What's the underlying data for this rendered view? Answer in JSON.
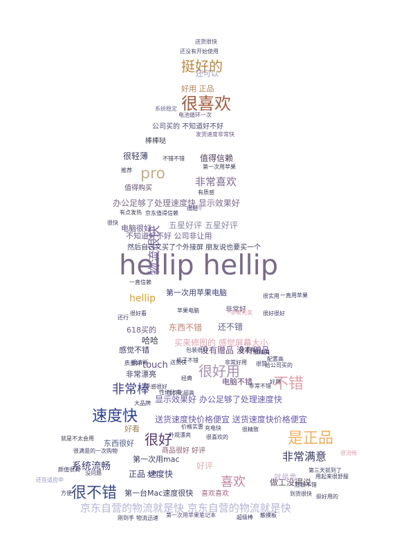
{
  "word_cloud": {
    "words": [
      {
        "text": "hellip hellip",
        "color": "#7a6a88"
      },
      {
        "text": "京东自营的物流就是快 京东自营的物流就是快",
        "color": "#b3b3d6"
      },
      {
        "text": "很喜欢",
        "color": "#a05a3c"
      },
      {
        "text": "挺好的",
        "color": "#b8863e"
      },
      {
        "text": "pro",
        "color": "#c4b08a"
      },
      {
        "text": "非常喜欢",
        "color": "#7a6890"
      },
      {
        "text": "速度快",
        "color": "#2d3d8a"
      },
      {
        "text": "很好用",
        "color": "#a58fb0"
      },
      {
        "text": "不错",
        "color": "#e0a0a8"
      },
      {
        "text": "非常棒",
        "color": "#3a3a80"
      },
      {
        "text": "很好",
        "color": "#5a3a70"
      },
      {
        "text": "是正品",
        "color": "#f0b060"
      },
      {
        "text": "很不错",
        "color": "#3a4a8a"
      },
      {
        "text": "非常满意",
        "color": "#3a3a60"
      },
      {
        "text": "喜欢",
        "color": "#c080a0"
      },
      {
        "text": "系统流畅",
        "color": "#3a3a70"
      },
      {
        "text": "hellip",
        "color": "#e0a020"
      },
      {
        "text": "物流很快",
        "color": "#7a68a0"
      },
      {
        "text": "送货速度快价格便宜 送货速度快价格便宜",
        "color": "#6a5aa8"
      },
      {
        "text": "显示效果好 办公足够了处理速度快",
        "color": "#6a5aa8"
      },
      {
        "text": "办公足够了处理速度快 显示效果好",
        "color": "#7a6a88"
      },
      {
        "text": "然后自己又买了个外接屏 朋友说也要买一个",
        "color": "#3a3a60"
      },
      {
        "text": "买来修图的 感觉屏幕大小",
        "color": "#e0a0b0"
      },
      {
        "text": "五星好评 五星好评",
        "color": "#8a8aa8"
      },
      {
        "text": "第一次用苹果电脑",
        "color": "#3a3a70"
      },
      {
        "text": "东西不错",
        "color": "#c08070"
      },
      {
        "text": "还不错",
        "color": "#5a5a80"
      },
      {
        "text": "值得信赖",
        "color": "#4a3a5a"
      },
      {
        "text": "很轻薄",
        "color": "#3a3a60"
      },
      {
        "text": "值得购买",
        "color": "#5a4a70"
      },
      {
        "text": "电脑很好",
        "color": "#5a4a80"
      },
      {
        "text": "不知道好不好 公司非让用",
        "color": "#6a5a88"
      },
      {
        "text": "公司买的 不知道好不好",
        "color": "#4a4a70"
      },
      {
        "text": "棒棒哒",
        "color": "#3a3a50"
      },
      {
        "text": "好用 正品",
        "color": "#b08050"
      },
      {
        "text": "还可以",
        "color": "#9a9ab8"
      },
      {
        "text": "正品 速度快",
        "color": "#3a3a70"
      },
      {
        "text": "东西很好",
        "color": "#4a5a88"
      },
      {
        "text": "第一次用mac",
        "color": "#3a3a60"
      },
      {
        "text": "第一台Mac速度很快",
        "color": "#3a3a60"
      },
      {
        "text": "商品很好 好评",
        "color": "#8a5a70"
      },
      {
        "text": "做工没得说",
        "color": "#5a4a60"
      },
      {
        "text": "好评",
        "color": "#e0b0b0"
      },
      {
        "text": "哈哈",
        "color": "#3a3a50"
      },
      {
        "text": "618买的",
        "color": "#6a5a80"
      },
      {
        "text": "感觉不错",
        "color": "#3a3a60"
      },
      {
        "text": "touch",
        "color": "#5a4a80"
      },
      {
        "text": "非常漂亮",
        "color": "#3a3a60"
      },
      {
        "text": "没有赠品 没有赠品",
        "color": "#6a4a80"
      },
      {
        "text": "好看",
        "color": "#a08050"
      },
      {
        "text": "喜欢喜欢",
        "color": "#a06080"
      },
      {
        "text": "非常好",
        "color": "#5a4a70"
      },
      {
        "text": "电脑不错",
        "color": "#5a3a70"
      },
      {
        "text": "很棒",
        "color": "#c0b0d0"
      },
      {
        "text": "就是贵",
        "color": "#c0b0d0"
      },
      {
        "text": "送货很快",
        "color": "#4a4a70"
      },
      {
        "text": "还没有开始使用",
        "color": "#4a4a70"
      },
      {
        "text": "系统稳定",
        "color": "#6a6a90"
      },
      {
        "text": "电池循环一次",
        "color": "#5a4a70"
      },
      {
        "text": "发货速度非常快",
        "color": "#6a5a88"
      },
      {
        "text": "第一次用苹果",
        "color": "#3a3a50"
      },
      {
        "text": "不错不错",
        "color": "#3a3a50"
      },
      {
        "text": "推荐",
        "color": "#3a3a50"
      },
      {
        "text": "有质感",
        "color": "#3a3a50"
      },
      {
        "text": "很轻",
        "color": "#3a3a60"
      },
      {
        "text": "京东值得信赖",
        "color": "#3a3a60"
      },
      {
        "text": "有点发热",
        "color": "#3a3a50"
      },
      {
        "text": "很快",
        "color": "#3a3a60"
      },
      {
        "text": "非常完美",
        "color": "#e0a0b0"
      },
      {
        "text": "还行",
        "color": "#3a3a60"
      },
      {
        "text": "一直信赖",
        "color": "#3a3a50"
      },
      {
        "text": "质量好",
        "color": "#3a3a60"
      },
      {
        "text": "配置高",
        "color": "#3a3a60"
      },
      {
        "text": "很赞",
        "color": "#3a3a60"
      },
      {
        "text": "经典",
        "color": "#3a3a60"
      },
      {
        "text": "苹果电脑",
        "color": "#3a3a60"
      },
      {
        "text": "很漂亮",
        "color": "#3a3a50"
      },
      {
        "text": "很满意的一次购物",
        "color": "#3a3a60"
      },
      {
        "text": "就是不太会用",
        "color": "#3a3a50"
      },
      {
        "text": "颜值很高",
        "color": "#3a3a60"
      },
      {
        "text": "没问题",
        "color": "#3a3a60"
      },
      {
        "text": "还在适应中",
        "color": "#9090c0"
      },
      {
        "text": "方便",
        "color": "#3a3a60"
      },
      {
        "text": "超级棒",
        "color": "#3a3a60"
      },
      {
        "text": "触摸板",
        "color": "#3a3a60"
      },
      {
        "text": "刚到手",
        "color": "#3a3a60"
      },
      {
        "text": "物流迅速",
        "color": "#3a3a60"
      },
      {
        "text": "第一次用苹果笔记本",
        "color": "#5a4a80"
      },
      {
        "text": "挺好用的",
        "color": "#3a3a60"
      },
      {
        "text": "到货很快",
        "color": "#3a3a60"
      },
      {
        "text": "应该不错",
        "color": "#3a3a60"
      },
      {
        "text": "用起来很舒服",
        "color": "#3a3a60"
      },
      {
        "text": "第三天就到了",
        "color": "#3a3a60"
      },
      {
        "text": "很实用",
        "color": "#3a3a60"
      },
      {
        "text": "很流畅",
        "color": "#e0a0b0"
      },
      {
        "text": "好用",
        "color": "#3a3a60"
      },
      {
        "text": "很好看",
        "color": "#3a3a60"
      },
      {
        "text": "非常不错",
        "color": "#3a3a60"
      },
      {
        "text": "一直用苹果",
        "color": "#3a3a60"
      },
      {
        "text": "给公司买的",
        "color": "#3a3a60"
      },
      {
        "text": "大品牌",
        "color": "#3a3a60"
      },
      {
        "text": "很精致",
        "color": "#3a3a60"
      },
      {
        "text": "大气",
        "color": "#3a3a60"
      },
      {
        "text": "性价比超高",
        "color": "#3a3a60"
      },
      {
        "text": "包装很好",
        "color": "#3a3a60"
      },
      {
        "text": "机子不错",
        "color": "#3a3a60"
      },
      {
        "text": "很精美",
        "color": "#3a3a60"
      },
      {
        "text": "送货快",
        "color": "#3a3a60"
      },
      {
        "text": "非常好用",
        "color": "#3a3a60"
      },
      {
        "text": "外观漂亮",
        "color": "#3a3a60"
      },
      {
        "text": "手感很好",
        "color": "#3a3a60"
      },
      {
        "text": "价格实惠",
        "color": "#3a3a60"
      },
      {
        "text": "性价比高",
        "color": "#3a3a60"
      },
      {
        "text": "很清晰",
        "color": "#3a3a60"
      },
      {
        "text": "充电快",
        "color": "#3a3a60"
      },
      {
        "text": "很好很好",
        "color": "#3a3a60"
      },
      {
        "text": "很喜欢的",
        "color": "#3a3a60"
      },
      {
        "text": "很满意",
        "color": "#3a3a60"
      }
    ]
  }
}
